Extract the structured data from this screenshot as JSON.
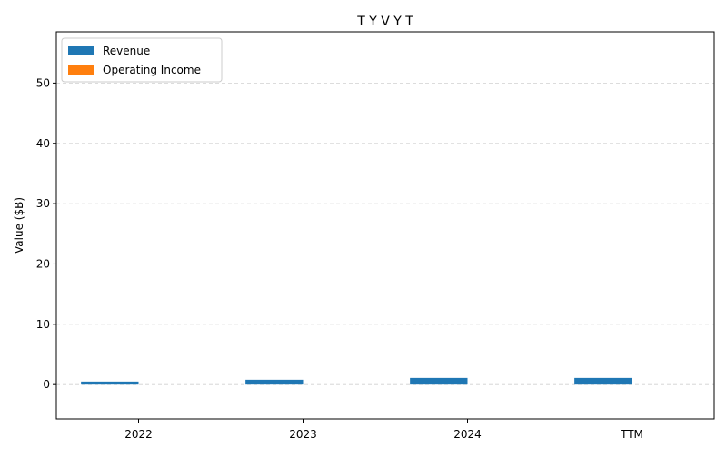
{
  "chart_data": {
    "type": "bar",
    "title": "T Y V Y T",
    "xlabel": "",
    "ylabel": "Value ($B)",
    "categories": [
      "2022",
      "2023",
      "2024",
      "TTM"
    ],
    "series": [
      {
        "name": "Revenue",
        "values": [
          0.5,
          0.8,
          1.1,
          1.1
        ],
        "color": "#1f77b4"
      },
      {
        "name": "Operating Income",
        "values": [
          0.0,
          0.0,
          0.0,
          0.0
        ],
        "color": "#ff7f0e"
      }
    ],
    "ylim": [
      -5.7,
      58.5
    ],
    "yticks": [
      0,
      10,
      20,
      30,
      40,
      50
    ],
    "grid": true,
    "legend": "upper left"
  }
}
